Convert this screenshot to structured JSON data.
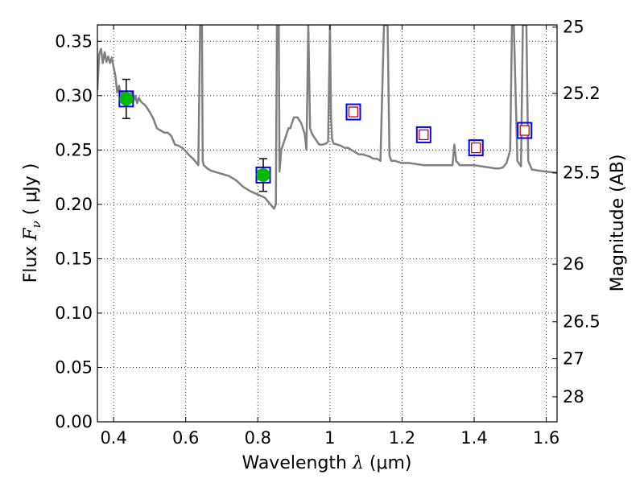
{
  "chart_data": {
    "type": "line",
    "xlabel": {
      "prefix": "Wavelength  ",
      "symbol": "λ",
      "unit": " (μm)"
    },
    "ylabel": {
      "prefix": "Flux  ",
      "symbol": "F",
      "sub": "ν",
      "unit": "  ( μJy )"
    },
    "ylabel_right": "Magnitude (AB)",
    "xlim": [
      0.355,
      1.63
    ],
    "ylim": [
      0.0,
      0.365
    ],
    "grid": true,
    "x_ticks": [
      {
        "value": 0.4,
        "label": "0.4"
      },
      {
        "value": 0.6,
        "label": "0.6"
      },
      {
        "value": 0.8,
        "label": "0.8"
      },
      {
        "value": 1.0,
        "label": "1"
      },
      {
        "value": 1.2,
        "label": "1.2"
      },
      {
        "value": 1.4,
        "label": "1.4"
      },
      {
        "value": 1.6,
        "label": "1.6"
      }
    ],
    "y_ticks": [
      {
        "value": 0.0,
        "label": "0.00"
      },
      {
        "value": 0.05,
        "label": "0.05"
      },
      {
        "value": 0.1,
        "label": "0.10"
      },
      {
        "value": 0.15,
        "label": "0.15"
      },
      {
        "value": 0.2,
        "label": "0.20"
      },
      {
        "value": 0.25,
        "label": "0.25"
      },
      {
        "value": 0.3,
        "label": "0.30"
      },
      {
        "value": 0.35,
        "label": "0.35"
      }
    ],
    "right_ticks": [
      {
        "flux": 0.363,
        "label": "25"
      },
      {
        "flux": 0.302,
        "label": "25.2"
      },
      {
        "flux": 0.229,
        "label": "25.5"
      },
      {
        "flux": 0.145,
        "label": "26"
      },
      {
        "flux": 0.092,
        "label": "26.5"
      },
      {
        "flux": 0.058,
        "label": "27"
      },
      {
        "flux": 0.023,
        "label": "28"
      }
    ],
    "model_spectrum": {
      "color": "#808080",
      "x": [
        0.355,
        0.36,
        0.365,
        0.37,
        0.375,
        0.38,
        0.385,
        0.39,
        0.395,
        0.4,
        0.405,
        0.41,
        0.415,
        0.42,
        0.425,
        0.43,
        0.435,
        0.44,
        0.445,
        0.45,
        0.455,
        0.46,
        0.465,
        0.47,
        0.475,
        0.48,
        0.485,
        0.49,
        0.5,
        0.51,
        0.52,
        0.53,
        0.54,
        0.55,
        0.56,
        0.57,
        0.58,
        0.59,
        0.6,
        0.61,
        0.62,
        0.63,
        0.635,
        0.64,
        0.643,
        0.645,
        0.647,
        0.65,
        0.66,
        0.67,
        0.68,
        0.69,
        0.7,
        0.72,
        0.74,
        0.76,
        0.78,
        0.8,
        0.82,
        0.83,
        0.84,
        0.845,
        0.85,
        0.853,
        0.856,
        0.858,
        0.86,
        0.865,
        0.87,
        0.875,
        0.88,
        0.885,
        0.89,
        0.895,
        0.9,
        0.91,
        0.92,
        0.93,
        0.935,
        0.94,
        0.945,
        0.95,
        0.96,
        0.97,
        0.98,
        0.99,
        0.995,
        1.0,
        1.003,
        1.006,
        1.01,
        1.02,
        1.03,
        1.04,
        1.05,
        1.06,
        1.07,
        1.08,
        1.09,
        1.1,
        1.11,
        1.12,
        1.13,
        1.14,
        1.15,
        1.155,
        1.16,
        1.165,
        1.17,
        1.18,
        1.19,
        1.2,
        1.22,
        1.24,
        1.26,
        1.28,
        1.3,
        1.32,
        1.33,
        1.34,
        1.345,
        1.35,
        1.36,
        1.38,
        1.4,
        1.42,
        1.44,
        1.46,
        1.47,
        1.48,
        1.49,
        1.5,
        1.505,
        1.51,
        1.52,
        1.53,
        1.535,
        1.54,
        1.545,
        1.55,
        1.56,
        1.58,
        1.6,
        1.63
      ],
      "y": [
        0.305,
        0.338,
        0.343,
        0.33,
        0.34,
        0.331,
        0.336,
        0.33,
        0.335,
        0.326,
        0.318,
        0.303,
        0.309,
        0.3,
        0.304,
        0.297,
        0.3,
        0.296,
        0.299,
        0.303,
        0.295,
        0.3,
        0.293,
        0.298,
        0.295,
        0.293,
        0.292,
        0.29,
        0.285,
        0.279,
        0.27,
        0.268,
        0.266,
        0.266,
        0.263,
        0.255,
        0.254,
        0.252,
        0.249,
        0.245,
        0.242,
        0.238,
        0.236,
        0.365,
        0.365,
        0.365,
        0.24,
        0.236,
        0.233,
        0.231,
        0.23,
        0.229,
        0.228,
        0.226,
        0.222,
        0.216,
        0.212,
        0.209,
        0.206,
        0.202,
        0.198,
        0.196,
        0.2,
        0.365,
        0.365,
        0.365,
        0.23,
        0.25,
        0.255,
        0.26,
        0.265,
        0.27,
        0.27,
        0.275,
        0.28,
        0.28,
        0.275,
        0.265,
        0.25,
        0.365,
        0.27,
        0.265,
        0.26,
        0.255,
        0.255,
        0.256,
        0.258,
        0.365,
        0.28,
        0.26,
        0.256,
        0.255,
        0.254,
        0.252,
        0.252,
        0.25,
        0.248,
        0.246,
        0.246,
        0.245,
        0.244,
        0.242,
        0.242,
        0.24,
        0.365,
        0.365,
        0.365,
        0.245,
        0.24,
        0.24,
        0.239,
        0.238,
        0.238,
        0.237,
        0.236,
        0.236,
        0.236,
        0.236,
        0.236,
        0.236,
        0.255,
        0.24,
        0.236,
        0.236,
        0.236,
        0.235,
        0.234,
        0.233,
        0.233,
        0.234,
        0.238,
        0.25,
        0.365,
        0.365,
        0.24,
        0.235,
        0.365,
        0.365,
        0.365,
        0.24,
        0.232,
        0.231,
        0.23,
        0.229
      ]
    },
    "photometry_model": {
      "marker": "square",
      "edge_color": "#0000ff",
      "x": [
        0.435,
        0.815,
        1.065,
        1.26,
        1.405,
        1.54
      ],
      "y": [
        0.297,
        0.227,
        0.285,
        0.264,
        0.252,
        0.268
      ]
    },
    "detections": {
      "marker": "circle",
      "color": "#00bb00",
      "x": [
        0.435,
        0.815
      ],
      "y": [
        0.297,
        0.227
      ],
      "yerr": [
        0.018,
        0.015
      ]
    },
    "upper_limits": {
      "marker": "square",
      "edge_color": "#cc0000",
      "x": [
        1.065,
        1.26,
        1.405,
        1.54
      ],
      "y": [
        0.285,
        0.264,
        0.252,
        0.268
      ]
    }
  }
}
